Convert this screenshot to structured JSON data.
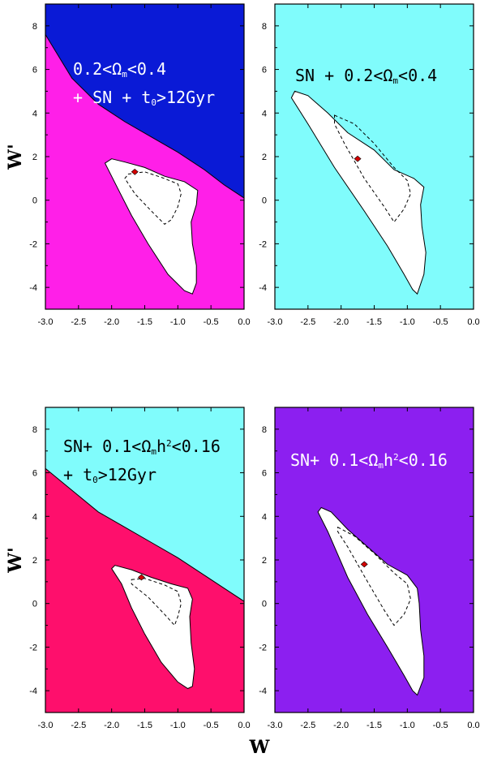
{
  "chart_data": [
    {
      "type": "contour",
      "panel": "top-left",
      "xlim": [
        -3.0,
        0.0
      ],
      "ylim": [
        -5,
        9
      ],
      "xticks": [
        "-3.0",
        "-2.5",
        "-2.0",
        "-1.5",
        "-1.0",
        "-0.5",
        "0.0"
      ],
      "yticks": [
        "-4",
        "-2",
        "0",
        "2",
        "4",
        "6",
        "8"
      ],
      "ylabel": "W'",
      "annotation": [
        [
          {
            "t": "0.2<Ω"
          },
          {
            "t": "m",
            "sub": true
          },
          {
            "t": "<0.4"
          }
        ],
        [
          {
            "t": "+ SN + t"
          },
          {
            "t": "0",
            "sub": true
          },
          {
            "t": ">12Gyr"
          }
        ]
      ],
      "annotation_color": "#ffffff",
      "background_color": "#ff1fe8",
      "excluded_region_color": "#0a1ad6",
      "excluded_boundary": [
        [
          -3.0,
          7.6
        ],
        [
          -2.6,
          5.6
        ],
        [
          -2.2,
          4.4
        ],
        [
          -1.8,
          3.6
        ],
        [
          -1.4,
          2.9
        ],
        [
          -1.0,
          2.2
        ],
        [
          -0.6,
          1.4
        ],
        [
          -0.3,
          0.7
        ],
        [
          0.0,
          0.1
        ]
      ],
      "best_fit": [
        -1.65,
        1.3
      ],
      "contour_outer": [
        [
          -2.0,
          1.9
        ],
        [
          -1.8,
          1.75
        ],
        [
          -1.5,
          1.5
        ],
        [
          -1.2,
          1.1
        ],
        [
          -0.9,
          0.85
        ],
        [
          -0.7,
          0.45
        ],
        [
          -0.72,
          -0.2
        ],
        [
          -0.8,
          -1.0
        ],
        [
          -0.78,
          -2.0
        ],
        [
          -0.72,
          -3.0
        ],
        [
          -0.72,
          -3.8
        ],
        [
          -0.78,
          -4.3
        ],
        [
          -0.9,
          -4.15
        ],
        [
          -1.15,
          -3.4
        ],
        [
          -1.45,
          -2.0
        ],
        [
          -1.7,
          -0.7
        ],
        [
          -1.9,
          0.5
        ],
        [
          -2.1,
          1.7
        ]
      ],
      "contour_inner": [
        [
          -1.75,
          1.2
        ],
        [
          -1.5,
          1.3
        ],
        [
          -1.25,
          1.05
        ],
        [
          -1.0,
          0.75
        ],
        [
          -0.95,
          0.3
        ],
        [
          -1.0,
          -0.3
        ],
        [
          -1.1,
          -0.9
        ],
        [
          -1.2,
          -1.1
        ],
        [
          -1.4,
          -0.5
        ],
        [
          -1.65,
          0.3
        ],
        [
          -1.8,
          1.0
        ]
      ]
    },
    {
      "type": "contour",
      "panel": "top-right",
      "xlim": [
        -3.0,
        0.0
      ],
      "ylim": [
        -5,
        9
      ],
      "xticks": [
        "-3.0",
        "-2.5",
        "-2.0",
        "-1.5",
        "-1.0",
        "-0.5",
        "0.0"
      ],
      "yticks": [
        "-4",
        "-2",
        "0",
        "2",
        "4",
        "6",
        "8"
      ],
      "annotation": [
        [
          {
            "t": "SN + 0.2<Ω"
          },
          {
            "t": "m",
            "sub": true
          },
          {
            "t": "<0.4"
          }
        ]
      ],
      "annotation_color": "#000000",
      "background_color": "#80fcfc",
      "best_fit": [
        -1.75,
        1.9
      ],
      "contour_outer": [
        [
          -2.7,
          5.0
        ],
        [
          -2.5,
          4.8
        ],
        [
          -2.2,
          4.0
        ],
        [
          -1.9,
          3.1
        ],
        [
          -1.5,
          2.3
        ],
        [
          -1.2,
          1.4
        ],
        [
          -0.9,
          1.0
        ],
        [
          -0.75,
          0.6
        ],
        [
          -0.8,
          -0.2
        ],
        [
          -0.78,
          -1.2
        ],
        [
          -0.72,
          -2.4
        ],
        [
          -0.75,
          -3.4
        ],
        [
          -0.85,
          -4.3
        ],
        [
          -0.92,
          -4.1
        ],
        [
          -1.05,
          -3.4
        ],
        [
          -1.3,
          -2.1
        ],
        [
          -1.65,
          -0.5
        ],
        [
          -2.1,
          1.5
        ],
        [
          -2.5,
          3.5
        ],
        [
          -2.75,
          4.7
        ]
      ],
      "contour_inner": [
        [
          -2.1,
          3.9
        ],
        [
          -1.8,
          3.5
        ],
        [
          -1.5,
          2.6
        ],
        [
          -1.2,
          1.5
        ],
        [
          -1.0,
          0.9
        ],
        [
          -0.95,
          0.3
        ],
        [
          -1.05,
          -0.4
        ],
        [
          -1.2,
          -1.0
        ],
        [
          -1.35,
          -0.3
        ],
        [
          -1.65,
          1.0
        ],
        [
          -1.95,
          2.6
        ],
        [
          -2.1,
          3.5
        ]
      ]
    },
    {
      "type": "contour",
      "panel": "bottom-left",
      "xlim": [
        -3.0,
        0.0
      ],
      "ylim": [
        -5,
        9
      ],
      "xticks": [
        "-3.0",
        "-2.5",
        "-2.0",
        "-1.5",
        "-1.0",
        "-0.5",
        "0.0"
      ],
      "yticks": [
        "-4",
        "-2",
        "0",
        "2",
        "4",
        "6",
        "8"
      ],
      "ylabel": "W'",
      "xlabel": "W",
      "annotation": [
        [
          {
            "t": "SN+ 0.1<Ω"
          },
          {
            "t": "m",
            "sub": true
          },
          {
            "t": "h"
          },
          {
            "t": "2",
            "sup": true
          },
          {
            "t": "<0.16"
          }
        ],
        [
          {
            "t": "+ t"
          },
          {
            "t": "0",
            "sub": true
          },
          {
            "t": ">12Gyr"
          }
        ]
      ],
      "annotation_color": "#000000",
      "background_color": "#fe0f6c",
      "excluded_region_color": "#80fcfc",
      "excluded_boundary": [
        [
          -3.0,
          6.2
        ],
        [
          -2.6,
          5.2
        ],
        [
          -2.2,
          4.2
        ],
        [
          -1.8,
          3.5
        ],
        [
          -1.4,
          2.8
        ],
        [
          -1.0,
          2.1
        ],
        [
          -0.6,
          1.3
        ],
        [
          -0.3,
          0.7
        ],
        [
          0.0,
          0.1
        ]
      ],
      "best_fit": [
        -1.55,
        1.2
      ],
      "contour_outer": [
        [
          -1.95,
          1.75
        ],
        [
          -1.7,
          1.55
        ],
        [
          -1.4,
          1.2
        ],
        [
          -1.1,
          0.9
        ],
        [
          -0.85,
          0.7
        ],
        [
          -0.78,
          0.2
        ],
        [
          -0.82,
          -0.6
        ],
        [
          -0.8,
          -1.8
        ],
        [
          -0.75,
          -3.0
        ],
        [
          -0.78,
          -3.8
        ],
        [
          -0.85,
          -3.9
        ],
        [
          -1.0,
          -3.6
        ],
        [
          -1.25,
          -2.7
        ],
        [
          -1.5,
          -1.4
        ],
        [
          -1.7,
          -0.2
        ],
        [
          -1.85,
          0.9
        ],
        [
          -2.0,
          1.6
        ]
      ],
      "contour_inner": [
        [
          -1.7,
          1.1
        ],
        [
          -1.5,
          1.15
        ],
        [
          -1.2,
          0.85
        ],
        [
          -1.0,
          0.55
        ],
        [
          -0.95,
          0.0
        ],
        [
          -1.0,
          -0.6
        ],
        [
          -1.05,
          -1.0
        ],
        [
          -1.2,
          -0.5
        ],
        [
          -1.45,
          0.3
        ],
        [
          -1.7,
          0.9
        ]
      ]
    },
    {
      "type": "contour",
      "panel": "bottom-right",
      "xlim": [
        -3.0,
        0.0
      ],
      "ylim": [
        -5,
        9
      ],
      "xticks": [
        "-3.0",
        "-2.5",
        "-2.0",
        "-1.5",
        "-1.0",
        "-0.5",
        "0.0"
      ],
      "yticks": [
        "-4",
        "-2",
        "0",
        "2",
        "4",
        "6",
        "8"
      ],
      "xlabel": "W",
      "annotation": [
        [
          {
            "t": "SN+ 0.1<Ω"
          },
          {
            "t": "m",
            "sub": true
          },
          {
            "t": "h"
          },
          {
            "t": "2",
            "sup": true
          },
          {
            "t": "<0.16"
          }
        ]
      ],
      "annotation_color": "#ffffff",
      "background_color": "#8c1ff0",
      "best_fit": [
        -1.65,
        1.8
      ],
      "contour_outer": [
        [
          -2.3,
          4.4
        ],
        [
          -2.15,
          4.2
        ],
        [
          -1.9,
          3.4
        ],
        [
          -1.6,
          2.6
        ],
        [
          -1.3,
          1.8
        ],
        [
          -1.0,
          1.3
        ],
        [
          -0.85,
          0.7
        ],
        [
          -0.82,
          0.0
        ],
        [
          -0.8,
          -1.2
        ],
        [
          -0.75,
          -2.4
        ],
        [
          -0.75,
          -3.4
        ],
        [
          -0.85,
          -4.2
        ],
        [
          -0.92,
          -4.0
        ],
        [
          -1.05,
          -3.3
        ],
        [
          -1.3,
          -2.0
        ],
        [
          -1.6,
          -0.5
        ],
        [
          -1.9,
          1.2
        ],
        [
          -2.2,
          3.3
        ],
        [
          -2.35,
          4.2
        ]
      ],
      "contour_inner": [
        [
          -2.05,
          3.5
        ],
        [
          -1.8,
          3.1
        ],
        [
          -1.5,
          2.3
        ],
        [
          -1.2,
          1.4
        ],
        [
          -1.0,
          0.9
        ],
        [
          -0.95,
          0.2
        ],
        [
          -1.05,
          -0.5
        ],
        [
          -1.2,
          -1.0
        ],
        [
          -1.35,
          -0.3
        ],
        [
          -1.6,
          1.0
        ],
        [
          -1.9,
          2.6
        ],
        [
          -2.05,
          3.3
        ]
      ]
    }
  ]
}
